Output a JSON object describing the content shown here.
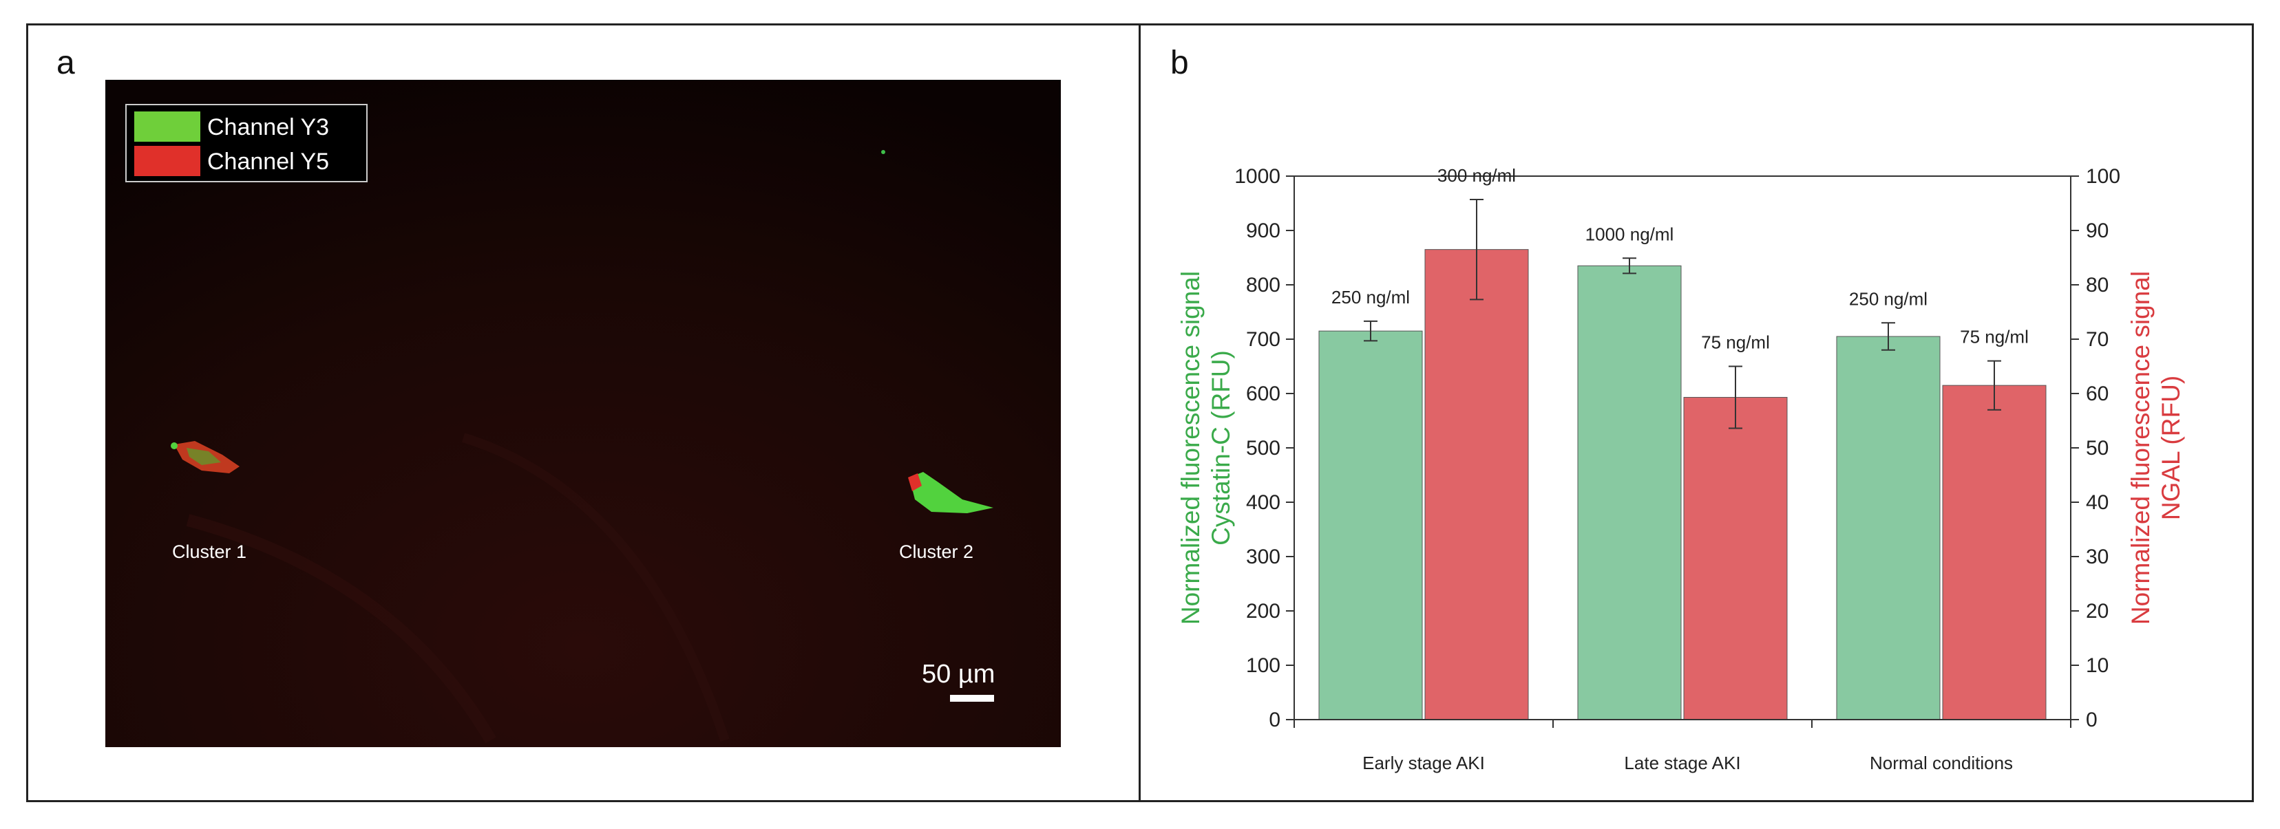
{
  "panel_a": {
    "letter": "a",
    "legend": [
      {
        "label": "Channel Y3",
        "color": "#6fcf3a"
      },
      {
        "label": "Channel Y5",
        "color": "#e0302a"
      }
    ],
    "clusters": [
      {
        "label": "Cluster 1"
      },
      {
        "label": "Cluster 2"
      }
    ],
    "scalebar_label": "50 µm"
  },
  "panel_b": {
    "letter": "b"
  },
  "chart_data": {
    "type": "bar",
    "categories": [
      "Early stage AKI",
      "Late stage AKI",
      "Normal conditions"
    ],
    "series": [
      {
        "name": "Normalized fluorescence signal Cystatin-C (RFU)",
        "axis": "left",
        "color": "#88c9a1",
        "values": [
          715,
          835,
          705
        ],
        "errors": [
          18,
          14,
          25
        ],
        "labels": [
          "250 ng/ml",
          "1000 ng/ml",
          "250 ng/ml"
        ]
      },
      {
        "name": "Normalized fluorescence signal NGAL (RFU)",
        "axis": "right",
        "color": "#e06468",
        "values": [
          86.5,
          59.3,
          61.5
        ],
        "errors": [
          9.2,
          5.7,
          4.5
        ],
        "labels": [
          "300 ng/ml",
          "75 ng/ml",
          "75 ng/ml"
        ]
      }
    ],
    "y_left": {
      "label_line1": "Normalized fluorescence signal",
      "label_line2": "Cystatin-C (RFU)",
      "color": "#3aaa4a",
      "lim": [
        0,
        1000
      ],
      "ticks": [
        0,
        100,
        200,
        300,
        400,
        500,
        600,
        700,
        800,
        900,
        1000
      ]
    },
    "y_right": {
      "label_line1": "Normalized fluorescence signal",
      "label_line2": "NGAL (RFU)",
      "color": "#d93b3f",
      "lim": [
        0,
        100
      ],
      "ticks": [
        0,
        10,
        20,
        30,
        40,
        50,
        60,
        70,
        80,
        90,
        100
      ]
    },
    "grid": false
  }
}
